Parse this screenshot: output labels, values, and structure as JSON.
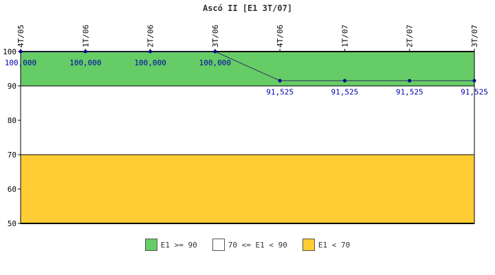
{
  "chart_data": {
    "type": "line",
    "title": "Ascó II [E1 3T/07]",
    "categories": [
      "4T/05",
      "1T/06",
      "2T/06",
      "3T/06",
      "4T/06",
      "1T/07",
      "2T/07",
      "3T/07"
    ],
    "values": [
      100,
      100,
      100,
      100,
      91.525,
      91.525,
      91.525,
      91.525
    ],
    "data_labels": [
      "100,000",
      "100,000",
      "100,000",
      "100,000",
      "91,525",
      "91,525",
      "91,525",
      "91,525"
    ],
    "ylim": [
      50,
      100
    ],
    "yticks": [
      50,
      60,
      70,
      80,
      90,
      100
    ],
    "bands": [
      {
        "from": 90,
        "to": 100,
        "color": "#66cc66",
        "label": "E1 >= 90"
      },
      {
        "from": 70,
        "to": 90,
        "color": "#ffffff",
        "label": "70 <= E1 < 90"
      },
      {
        "from": 50,
        "to": 70,
        "color": "#ffcc33",
        "label": "E1 < 70"
      }
    ],
    "line_color": "#333366",
    "marker_color": "#000099",
    "label_color": "#0000aa",
    "grid": false,
    "legend_position": "bottom"
  }
}
